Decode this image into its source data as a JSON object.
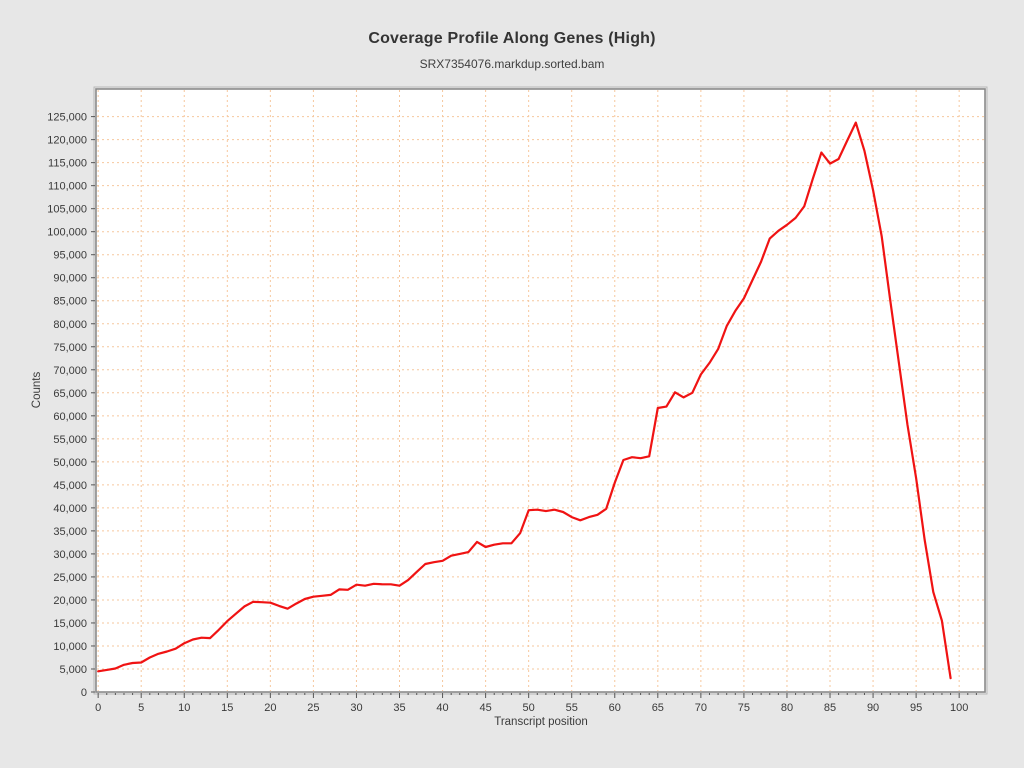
{
  "figure": {
    "background": "#e7e7e7"
  },
  "chart_data": {
    "type": "line",
    "title": "Coverage Profile Along Genes (High)",
    "subtitle": "SRX7354076.markdup.sorted.bam",
    "xlabel": "Transcript position",
    "ylabel": "Counts",
    "x_ticks": [
      0,
      5,
      10,
      15,
      20,
      25,
      30,
      35,
      40,
      45,
      50,
      55,
      60,
      65,
      70,
      75,
      80,
      85,
      90,
      95,
      100
    ],
    "x_minor_tick_step": 1,
    "y_ticks": [
      0,
      5000,
      10000,
      15000,
      20000,
      25000,
      30000,
      35000,
      40000,
      45000,
      50000,
      55000,
      60000,
      65000,
      70000,
      75000,
      80000,
      85000,
      90000,
      95000,
      100000,
      105000,
      110000,
      115000,
      120000,
      125000
    ],
    "y_tick_format": "comma",
    "xlim": [
      -0.25,
      103
    ],
    "ylim": [
      0,
      131000
    ],
    "grid": "dashed both axes",
    "legend_position": "none",
    "colors": {
      "line": "#f01313",
      "grid": "#f6c79d",
      "plot_background": "#ffffff",
      "figure_background": "#e7e7e7",
      "axis_border": "#8a8a8a",
      "tick": "#555555",
      "text": "#3b3b3b"
    },
    "series": [
      {
        "name": "Coverage",
        "x_start": 0,
        "x_step": 1,
        "values": [
          4500,
          4800,
          5100,
          5900,
          6300,
          6400,
          7500,
          8300,
          8800,
          9400,
          10600,
          11400,
          11800,
          11700,
          13500,
          15400,
          17000,
          18600,
          19600,
          19500,
          19400,
          18700,
          18100,
          19200,
          20200,
          20700,
          20900,
          21100,
          22300,
          22200,
          23300,
          23100,
          23500,
          23400,
          23400,
          23100,
          24300,
          26100,
          27800,
          28200,
          28500,
          29600,
          30000,
          30400,
          32600,
          31500,
          32000,
          32300,
          32300,
          34500,
          39500,
          39600,
          39300,
          39600,
          39100,
          38000,
          37300,
          38000,
          38500,
          39800,
          45500,
          50400,
          51000,
          50800,
          51200,
          61700,
          62000,
          65100,
          64000,
          65000,
          69000,
          71500,
          74500,
          79500,
          82800,
          85500,
          89500,
          93500,
          98500,
          100200,
          101500,
          103000,
          105500,
          111500,
          117200,
          114800,
          115800,
          119800,
          123700,
          117500,
          109000,
          99000,
          85000,
          71500,
          58000,
          46500,
          33000,
          21700,
          15500,
          3000
        ]
      }
    ]
  }
}
